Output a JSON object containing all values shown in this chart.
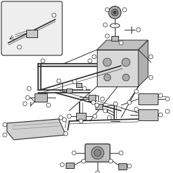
{
  "bg_color": "#ffffff",
  "line_color": "#2a2a2a",
  "fill_color": "#d8d8d8",
  "inset_bg": "#eeeeee",
  "figsize": [
    2.5,
    2.5
  ],
  "dpi": 100,
  "lw_thick": 1.2,
  "lw_med": 0.7,
  "lw_thin": 0.45
}
